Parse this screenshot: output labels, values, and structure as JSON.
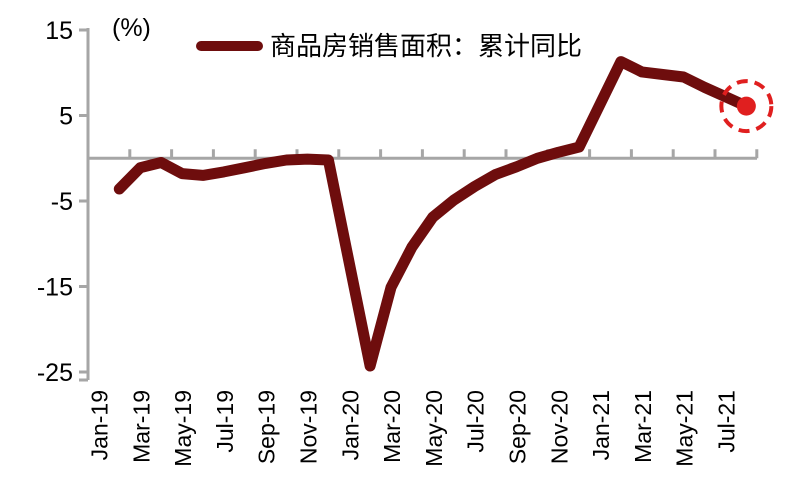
{
  "unit_label": "(%)",
  "legend": {
    "label": "商品房销售面积：累计同比"
  },
  "colors": {
    "line": "#6e0d0d",
    "highlight": "#e01f1f",
    "axis": "#a6a6a6",
    "text": "#000000"
  },
  "chart_data": {
    "type": "line",
    "title": "",
    "ylabel": "(%)",
    "xlabel": "",
    "ylim": [
      -25,
      15
    ],
    "y_ticks": [
      15,
      5,
      -5,
      -15,
      -25
    ],
    "zero_gridline": true,
    "grid": "zero-line-only",
    "legend_position": "top",
    "x_tick_labels": [
      "Jan-19",
      "Mar-19",
      "May-19",
      "Jul-19",
      "Sep-19",
      "Nov-19",
      "Jan-20",
      "Mar-20",
      "May-20",
      "Jul-20",
      "Sep-20",
      "Nov-20",
      "Jan-21",
      "Mar-21",
      "May-21",
      "Jul-21"
    ],
    "categories": [
      "Jan-19",
      "Feb-19",
      "Mar-19",
      "Apr-19",
      "May-19",
      "Jun-19",
      "Jul-19",
      "Aug-19",
      "Sep-19",
      "Oct-19",
      "Nov-19",
      "Dec-19",
      "Jan-20",
      "Feb-20",
      "Mar-20",
      "Apr-20",
      "May-20",
      "Jun-20",
      "Jul-20",
      "Aug-20",
      "Sep-20",
      "Oct-20",
      "Nov-20",
      "Dec-20",
      "Jan-21",
      "Feb-21",
      "Mar-21",
      "Apr-21",
      "May-21",
      "Jun-21",
      "Jul-21",
      "Aug-21"
    ],
    "series": [
      {
        "name": "商品房销售面积：累计同比",
        "color": "#6e0d0d",
        "values": [
          null,
          -3.6,
          -1.1,
          -0.5,
          -1.8,
          -2.0,
          -1.6,
          -1.1,
          -0.6,
          -0.2,
          -0.1,
          -0.2,
          null,
          -24.3,
          -15.1,
          -10.4,
          -6.9,
          -4.9,
          -3.3,
          -1.9,
          -1.0,
          0.0,
          0.7,
          1.3,
          null,
          11.3,
          10.1,
          9.8,
          9.5,
          8.3,
          7.2,
          6.1
        ]
      }
    ],
    "highlight_last_point": {
      "enabled": true,
      "category": "Aug-21",
      "value": 6.1,
      "style": "filled dot with dashed circle",
      "color": "#e01f1f"
    }
  }
}
